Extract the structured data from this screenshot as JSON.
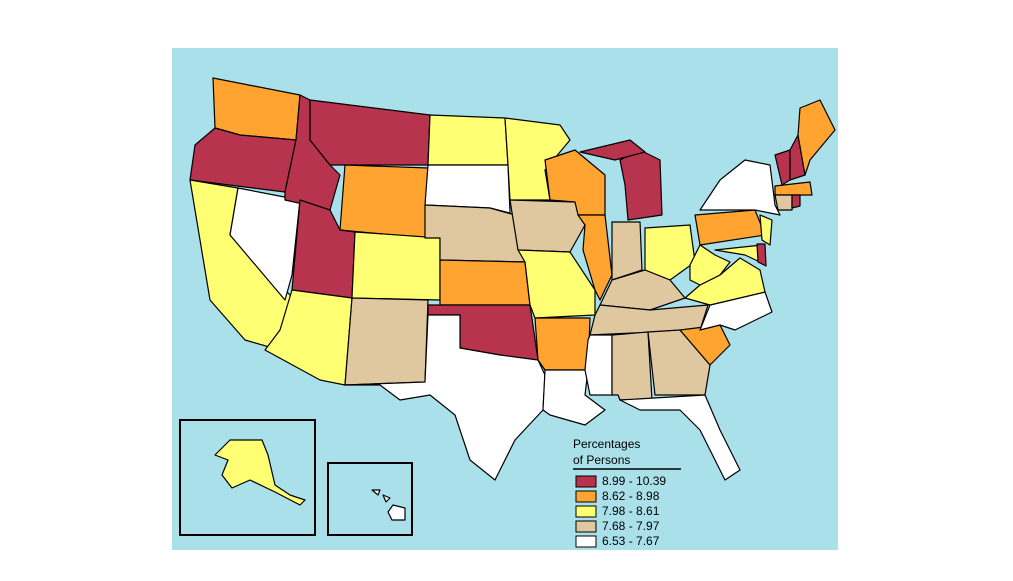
{
  "legend": {
    "title": [
      "Percentages",
      "of Persons"
    ],
    "items": [
      {
        "label": "8.99 - 10.39",
        "color": "#b8334e"
      },
      {
        "label": "8.62 - 8.98",
        "color": "#ffa331"
      },
      {
        "label": "7.98 - 8.61",
        "color": "#ffff73"
      },
      {
        "label": "7.68 - 7.97",
        "color": "#dfc8a0"
      },
      {
        "label": "6.53 - 7.67",
        "color": "#ffffff"
      }
    ]
  }
}
